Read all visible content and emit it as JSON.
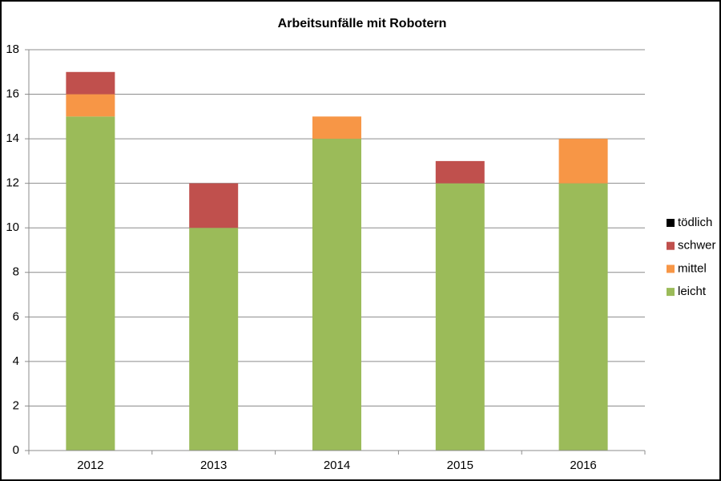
{
  "chart_data": {
    "type": "stacked_bar",
    "title": "Arbeitsunfälle mit Robotern",
    "categories": [
      "2012",
      "2013",
      "2014",
      "2015",
      "2016"
    ],
    "series": [
      {
        "name": "leicht",
        "color": "#9bbb59",
        "values": [
          15,
          10,
          14,
          12,
          12
        ]
      },
      {
        "name": "mittel",
        "color": "#f79646",
        "values": [
          1,
          0,
          1,
          0,
          2
        ]
      },
      {
        "name": "schwer",
        "color": "#c0504d",
        "values": [
          1,
          2,
          0,
          1,
          0
        ]
      },
      {
        "name": "tödlich",
        "color": "#000000",
        "values": [
          0,
          0,
          0,
          0,
          0
        ]
      }
    ],
    "ylim": [
      0,
      18
    ],
    "yticks": [
      0,
      2,
      4,
      6,
      8,
      10,
      12,
      14,
      16,
      18
    ],
    "grid": true,
    "legend": "right"
  }
}
